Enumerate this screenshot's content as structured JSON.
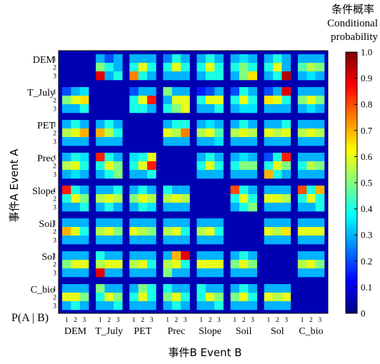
{
  "chart_data": {
    "type": "heatmap",
    "title": "",
    "xlabel": "事件B Event B",
    "ylabel": "事件A Event A",
    "corner_label": "P(A | B)",
    "categories": [
      "DEM",
      "T_July",
      "PET",
      "Prec",
      "Slope",
      "Soil",
      "Sol",
      "C_bio"
    ],
    "levels": [
      "1",
      "2",
      "3"
    ],
    "colorbar": {
      "label_cn": "条件概率",
      "label_en_1": "Conditional",
      "label_en_2": "probability",
      "range": [
        0,
        1
      ],
      "ticks": [
        "0",
        "0.1",
        "0.2",
        "0.3",
        "0.4",
        "0.5",
        "0.6",
        "0.7",
        "0.8",
        "0.9",
        "1.0"
      ]
    },
    "background_value": 0.05,
    "blocks": [
      [
        null,
        [
          [
            0.3,
            0.2,
            0.3
          ],
          [
            0.5,
            0.4,
            0.3
          ],
          [
            0.9,
            0.3,
            0.4
          ]
        ],
        [
          [
            0.3,
            0.3,
            0.3
          ],
          [
            0.4,
            0.6,
            0.4
          ],
          [
            0.75,
            0.4,
            0.3
          ]
        ],
        [
          [
            0.25,
            0.4,
            0.3
          ],
          [
            0.4,
            0.6,
            0.4
          ],
          [
            0.3,
            0.3,
            0.3
          ]
        ],
        [
          [
            0.3,
            0.4,
            0.3
          ],
          [
            0.4,
            0.6,
            0.4
          ],
          [
            0.3,
            0.4,
            0.4
          ]
        ],
        [
          [
            0.3,
            0.35,
            0.3
          ],
          [
            0.4,
            0.5,
            0.4
          ],
          [
            0.3,
            0.5,
            0.65
          ]
        ],
        [
          [
            0.3,
            0.4,
            0.3
          ],
          [
            0.4,
            0.6,
            0.3
          ],
          [
            0.3,
            0.4,
            0.95
          ]
        ],
        [
          [
            0.3,
            0.3,
            0.3
          ],
          [
            0.45,
            0.55,
            0.5
          ],
          [
            0.3,
            0.35,
            0.3
          ]
        ]
      ],
      [
        [
          [
            0.2,
            0.3,
            0.35
          ],
          [
            0.5,
            0.6,
            0.65
          ],
          [
            0.3,
            0.3,
            0.4
          ]
        ],
        null,
        [
          [
            0.2,
            0.3,
            0.3
          ],
          [
            0.4,
            0.6,
            0.85
          ],
          [
            0.4,
            0.4,
            0.3
          ]
        ],
        [
          [
            0.5,
            0.3,
            0.3
          ],
          [
            0.3,
            0.6,
            0.6
          ],
          [
            0.4,
            0.5,
            0.6
          ]
        ],
        [
          [
            0.15,
            0.2,
            0.3
          ],
          [
            0.4,
            0.6,
            0.6
          ],
          [
            0.3,
            0.3,
            0.4
          ]
        ],
        [
          [
            0.2,
            0.4,
            0.3
          ],
          [
            0.4,
            0.6,
            0.4
          ],
          [
            0.3,
            0.35,
            0.35
          ]
        ],
        [
          [
            0.2,
            0.3,
            0.9
          ],
          [
            0.65,
            0.6,
            0.4
          ],
          [
            0.3,
            0.3,
            0.3
          ]
        ],
        [
          [
            0.3,
            0.3,
            0.3
          ],
          [
            0.5,
            0.6,
            0.5
          ],
          [
            0.3,
            0.35,
            0.3
          ]
        ]
      ],
      [
        [
          [
            0.3,
            0.4,
            0.3
          ],
          [
            0.55,
            0.6,
            0.7
          ],
          [
            0.3,
            0.3,
            0.3
          ]
        ],
        [
          [
            0.3,
            0.4,
            0.3
          ],
          [
            0.7,
            0.55,
            0.4
          ],
          [
            0.3,
            0.3,
            0.3
          ]
        ],
        null,
        [
          [
            0.3,
            0.4,
            0.4
          ],
          [
            0.6,
            0.55,
            0.75
          ],
          [
            0.3,
            0.3,
            0.3
          ]
        ],
        [
          [
            0.3,
            0.35,
            0.3
          ],
          [
            0.55,
            0.6,
            0.45
          ],
          [
            0.3,
            0.3,
            0.35
          ]
        ],
        [
          [
            0.3,
            0.4,
            0.3
          ],
          [
            0.55,
            0.6,
            0.55
          ],
          [
            0.3,
            0.3,
            0.3
          ]
        ],
        [
          [
            0.3,
            0.3,
            0.4
          ],
          [
            0.6,
            0.55,
            0.6
          ],
          [
            0.3,
            0.3,
            0.3
          ]
        ],
        [
          [
            0.3,
            0.3,
            0.3
          ],
          [
            0.55,
            0.6,
            0.55
          ],
          [
            0.3,
            0.3,
            0.3
          ]
        ]
      ],
      [
        [
          [
            0.3,
            0.4,
            0.35
          ],
          [
            0.55,
            0.6,
            0.4
          ],
          [
            0.3,
            0.35,
            0.3
          ]
        ],
        [
          [
            0.85,
            0.4,
            0.3
          ],
          [
            0.4,
            0.6,
            0.5
          ],
          [
            0.3,
            0.4,
            0.5
          ]
        ],
        [
          [
            0.35,
            0.4,
            0.6
          ],
          [
            0.4,
            0.6,
            0.85
          ],
          [
            0.3,
            0.3,
            0.4
          ]
        ],
        null,
        [
          [
            0.3,
            0.4,
            0.3
          ],
          [
            0.4,
            0.6,
            0.4
          ],
          [
            0.3,
            0.3,
            0.3
          ]
        ],
        [
          [
            0.3,
            0.35,
            0.3
          ],
          [
            0.4,
            0.5,
            0.5
          ],
          [
            0.3,
            0.3,
            0.3
          ]
        ],
        [
          [
            0.2,
            0.4,
            0.85
          ],
          [
            0.4,
            0.6,
            0.5
          ],
          [
            0.7,
            0.4,
            0.3
          ]
        ],
        [
          [
            0.3,
            0.3,
            0.3
          ],
          [
            0.4,
            0.55,
            0.5
          ],
          [
            0.3,
            0.3,
            0.3
          ]
        ]
      ],
      [
        [
          [
            0.85,
            0.4,
            0.3
          ],
          [
            0.4,
            0.6,
            0.5
          ],
          [
            0.3,
            0.3,
            0.4
          ]
        ],
        [
          [
            0.3,
            0.3,
            0.4
          ],
          [
            0.55,
            0.6,
            0.55
          ],
          [
            0.3,
            0.4,
            0.3
          ]
        ],
        [
          [
            0.3,
            0.4,
            0.3
          ],
          [
            0.5,
            0.6,
            0.55
          ],
          [
            0.3,
            0.4,
            0.35
          ]
        ],
        [
          [
            0.4,
            0.3,
            0.3
          ],
          [
            0.55,
            0.6,
            0.55
          ],
          [
            0.3,
            0.3,
            0.3
          ]
        ],
        null,
        [
          [
            0.8,
            0.4,
            0.3
          ],
          [
            0.4,
            0.6,
            0.4
          ],
          [
            0.3,
            0.4,
            0.5
          ]
        ],
        [
          [
            0.3,
            0.3,
            0.3
          ],
          [
            0.6,
            0.6,
            0.55
          ],
          [
            0.3,
            0.3,
            0.3
          ]
        ],
        [
          [
            0.8,
            0.4,
            0.7
          ],
          [
            0.4,
            0.6,
            0.4
          ],
          [
            0.3,
            0.3,
            0.4
          ]
        ]
      ],
      [
        [
          [
            0.3,
            0.3,
            0.3
          ],
          [
            0.7,
            0.6,
            0.4
          ],
          [
            0.3,
            0.3,
            0.3
          ]
        ],
        [
          [
            0.3,
            0.3,
            0.3
          ],
          [
            0.55,
            0.6,
            0.5
          ],
          [
            0.3,
            0.3,
            0.3
          ]
        ],
        [
          [
            0.3,
            0.3,
            0.3
          ],
          [
            0.6,
            0.55,
            0.5
          ],
          [
            0.3,
            0.3,
            0.3
          ]
        ],
        [
          [
            0.3,
            0.3,
            0.3
          ],
          [
            0.55,
            0.6,
            0.4
          ],
          [
            0.3,
            0.3,
            0.3
          ]
        ],
        [
          [
            0.3,
            0.3,
            0.3
          ],
          [
            0.55,
            0.6,
            0.4
          ],
          [
            0.3,
            0.3,
            0.3
          ]
        ],
        null,
        [
          [
            0.3,
            0.3,
            0.3
          ],
          [
            0.6,
            0.55,
            0.65
          ],
          [
            0.3,
            0.3,
            0.3
          ]
        ],
        [
          [
            0.3,
            0.3,
            0.3
          ],
          [
            0.6,
            0.6,
            0.6
          ],
          [
            0.3,
            0.3,
            0.3
          ]
        ]
      ],
      [
        [
          [
            0.3,
            0.3,
            0.3
          ],
          [
            0.5,
            0.6,
            0.6
          ],
          [
            0.3,
            0.3,
            0.3
          ]
        ],
        [
          [
            0.4,
            0.3,
            0.3
          ],
          [
            0.55,
            0.6,
            0.6
          ],
          [
            0.9,
            0.3,
            0.3
          ]
        ],
        [
          [
            0.3,
            0.3,
            0.3
          ],
          [
            0.55,
            0.6,
            0.4
          ],
          [
            0.3,
            0.3,
            0.3
          ]
        ],
        [
          [
            0.3,
            0.7,
            0.9
          ],
          [
            0.55,
            0.6,
            0.4
          ],
          [
            0.5,
            0.3,
            0.3
          ]
        ],
        [
          [
            0.3,
            0.3,
            0.3
          ],
          [
            0.6,
            0.6,
            0.6
          ],
          [
            0.3,
            0.3,
            0.3
          ]
        ],
        [
          [
            0.3,
            0.4,
            0.3
          ],
          [
            0.5,
            0.6,
            0.5
          ],
          [
            0.3,
            0.3,
            0.3
          ]
        ],
        null,
        [
          [
            0.3,
            0.3,
            0.3
          ],
          [
            0.55,
            0.6,
            0.5
          ],
          [
            0.3,
            0.3,
            0.3
          ]
        ]
      ],
      [
        [
          [
            0.3,
            0.3,
            0.3
          ],
          [
            0.6,
            0.6,
            0.5
          ],
          [
            0.3,
            0.4,
            0.3
          ]
        ],
        [
          [
            0.5,
            0.3,
            0.3
          ],
          [
            0.4,
            0.6,
            0.5
          ],
          [
            0.3,
            0.3,
            0.4
          ]
        ],
        [
          [
            0.3,
            0.5,
            0.4
          ],
          [
            0.4,
            0.6,
            0.4
          ],
          [
            0.3,
            0.3,
            0.3
          ]
        ],
        [
          [
            0.4,
            0.3,
            0.3
          ],
          [
            0.5,
            0.6,
            0.4
          ],
          [
            0.3,
            0.4,
            0.3
          ]
        ],
        [
          [
            0.4,
            0.3,
            0.3
          ],
          [
            0.4,
            0.6,
            0.5
          ],
          [
            0.3,
            0.3,
            0.4
          ]
        ],
        [
          [
            0.3,
            0.4,
            0.3
          ],
          [
            0.5,
            0.6,
            0.4
          ],
          [
            0.3,
            0.3,
            0.3
          ]
        ],
        [
          [
            0.3,
            0.3,
            0.3
          ],
          [
            0.6,
            0.55,
            0.6
          ],
          [
            0.3,
            0.3,
            0.3
          ]
        ],
        null
      ]
    ]
  }
}
